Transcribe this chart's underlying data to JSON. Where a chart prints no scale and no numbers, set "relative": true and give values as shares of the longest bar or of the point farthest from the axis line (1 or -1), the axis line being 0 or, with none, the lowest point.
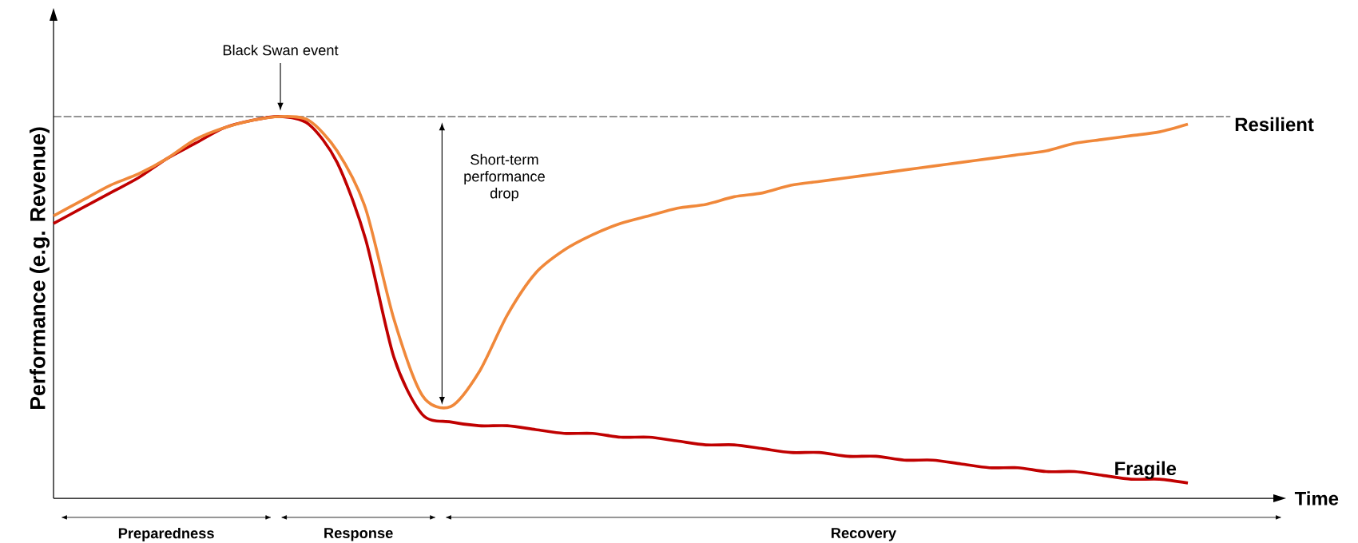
{
  "chart_data": {
    "type": "line",
    "relative": true,
    "xlabel": "Time",
    "ylabel": "Performance (e.g. Revenue)",
    "categories": [
      null,
      null,
      null,
      null,
      null,
      null,
      null,
      null,
      null,
      null,
      null,
      null,
      null,
      null,
      null,
      null,
      null,
      null,
      null,
      null,
      null,
      null,
      null,
      null,
      null,
      null,
      null,
      null,
      null,
      null,
      null,
      null,
      null,
      null,
      null,
      null,
      null,
      null,
      null,
      null,
      null
    ],
    "series": [
      {
        "name": "Fragile",
        "color": "#c00000",
        "values": [
          0.72,
          0.76,
          0.8,
          0.84,
          0.89,
          0.93,
          0.97,
          0.99,
          1.0,
          0.98,
          0.88,
          0.68,
          0.37,
          0.22,
          0.2,
          0.19,
          0.19,
          0.18,
          0.17,
          0.17,
          0.16,
          0.16,
          0.15,
          0.14,
          0.14,
          0.13,
          0.12,
          0.12,
          0.11,
          0.11,
          0.1,
          0.1,
          0.09,
          0.08,
          0.08,
          0.07,
          0.07,
          0.06,
          0.05,
          0.05,
          0.04
        ]
      },
      {
        "name": "Resilient",
        "color": "#f0883a",
        "values": [
          0.74,
          0.78,
          0.82,
          0.85,
          0.89,
          0.94,
          0.97,
          0.99,
          1.0,
          0.99,
          0.91,
          0.76,
          0.47,
          0.27,
          0.24,
          0.33,
          0.48,
          0.59,
          0.65,
          0.69,
          0.72,
          0.74,
          0.76,
          0.77,
          0.79,
          0.8,
          0.82,
          0.83,
          0.84,
          0.85,
          0.86,
          0.87,
          0.88,
          0.89,
          0.9,
          0.91,
          0.93,
          0.94,
          0.95,
          0.96,
          0.98
        ]
      }
    ],
    "ref_lines": [
      {
        "axis": "y",
        "value": 1,
        "color": "#000000",
        "line_style": "dashed"
      }
    ],
    "annotations": [
      "Black Swan event",
      "Short-term performance drop",
      "Preparedness",
      "Response",
      "Recovery"
    ],
    "marker": "none",
    "line_style": "solid"
  }
}
